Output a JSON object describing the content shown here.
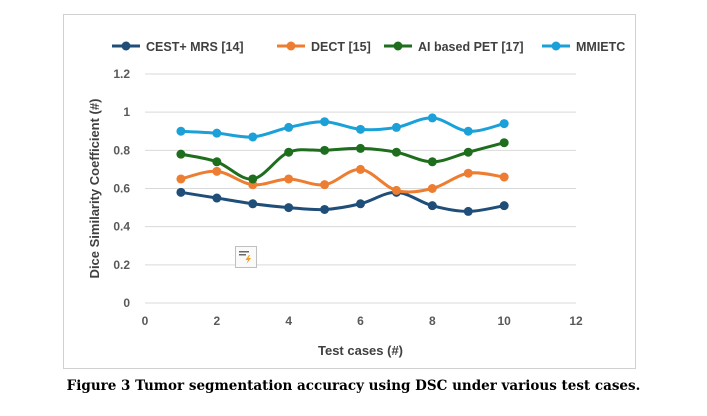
{
  "chart_data": {
    "type": "line",
    "title": "",
    "xlabel": "Test cases (#)",
    "ylabel": "Dice Similarity Coefficient (#)",
    "xlim": [
      0,
      12
    ],
    "ylim": [
      0,
      1.2
    ],
    "x_ticks": [
      "0",
      "2",
      "4",
      "6",
      "8",
      "10",
      "12"
    ],
    "y_ticks": [
      "0",
      "0.2",
      "0.4",
      "0.6",
      "0.8",
      "1",
      "1.2"
    ],
    "grid": true,
    "legend_position": "top",
    "x": [
      1,
      2,
      3,
      4,
      5,
      6,
      7,
      8,
      9,
      10
    ],
    "series": [
      {
        "name": "CEST+ MRS [14]",
        "color": "#1f4e79",
        "values": [
          0.58,
          0.55,
          0.52,
          0.5,
          0.49,
          0.52,
          0.58,
          0.51,
          0.48,
          0.51
        ]
      },
      {
        "name": "DECT [15]",
        "color": "#ed7d31",
        "values": [
          0.65,
          0.69,
          0.62,
          0.65,
          0.62,
          0.7,
          0.59,
          0.6,
          0.68,
          0.66
        ]
      },
      {
        "name": "AI based PET [17]",
        "color": "#1e6e1e",
        "values": [
          0.78,
          0.74,
          0.65,
          0.79,
          0.8,
          0.81,
          0.79,
          0.74,
          0.79,
          0.84
        ]
      },
      {
        "name": "MMIETC",
        "color": "#1ba1d8",
        "values": [
          0.9,
          0.89,
          0.87,
          0.92,
          0.95,
          0.91,
          0.92,
          0.97,
          0.9,
          0.94
        ]
      }
    ]
  },
  "caption": "Figure 3 Tumor segmentation accuracy using DSC under various test cases.",
  "smart_tag_icon": "quick-analysis-icon"
}
